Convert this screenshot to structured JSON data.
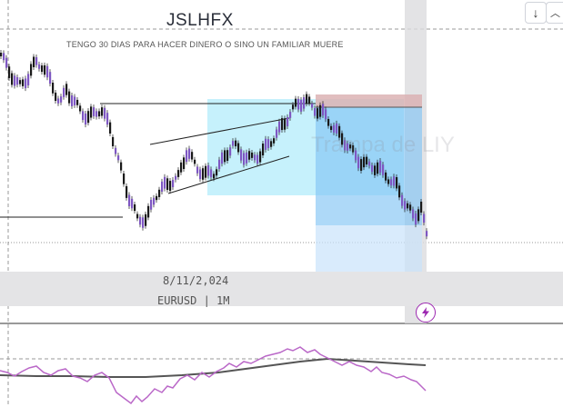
{
  "chart": {
    "title": "JSLHFX",
    "subtitle": "TENGO 30 DIAS PARA HACER DINERO O SINO UN FAMILIAR MUERE",
    "date": "8/11/2,024",
    "symbol": "EURUSD | 1M",
    "watermark": "Trampa de LIY"
  },
  "toolbar": {
    "down_icon": "arrow-down-icon",
    "collapse_icon": "chevron-collapse-icon",
    "alert_icon": "lightning-icon"
  },
  "colors": {
    "candle": "#7e57c2",
    "pattern_zone": "#b3ecfb",
    "target_zone": "#82c4f5",
    "stop_zone": "#e8a0a0",
    "rsi_line": "#ba68c8",
    "rsi_ma": "#555555"
  }
}
